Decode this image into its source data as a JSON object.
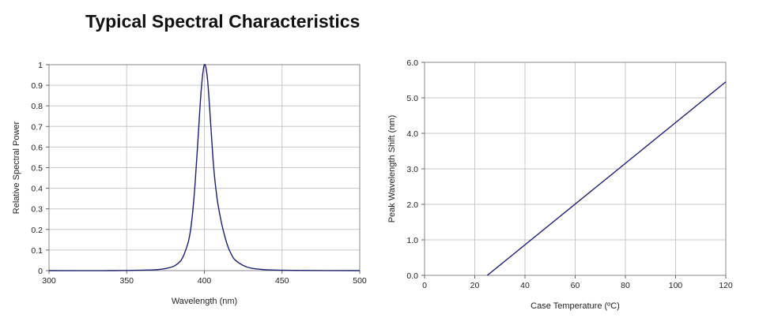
{
  "page": {
    "title": "Typical Spectral Characteristics"
  },
  "chart_data": [
    {
      "type": "line",
      "xlabel": "Wavelength (nm)",
      "ylabel": "Relative Spectral Power",
      "xlim": [
        300,
        500
      ],
      "ylim": [
        0,
        1
      ],
      "xticks": [
        300,
        350,
        400,
        450,
        500
      ],
      "yticks": [
        0,
        0.1,
        0.2,
        0.3,
        0.4,
        0.5,
        0.6,
        0.7,
        0.8,
        0.9,
        1
      ],
      "ytick_labels": [
        "0",
        "0.1",
        "0.2",
        "0.3",
        "0.4",
        "0.5",
        "0.6",
        "0.7",
        "0.8",
        "0.9",
        "1"
      ],
      "grid": true,
      "color": "#1f1f6e",
      "series": [
        {
          "x": [
            300,
            340,
            360,
            370,
            375,
            380,
            383,
            385,
            387,
            390,
            392,
            394,
            396,
            398,
            400,
            402,
            404,
            406,
            408,
            410,
            412,
            415,
            418,
            420,
            425,
            430,
            440,
            460,
            500
          ],
          "y": [
            0,
            0,
            0.002,
            0.005,
            0.01,
            0.02,
            0.035,
            0.05,
            0.08,
            0.15,
            0.25,
            0.42,
            0.65,
            0.88,
            1.0,
            0.93,
            0.72,
            0.5,
            0.36,
            0.27,
            0.2,
            0.12,
            0.07,
            0.05,
            0.025,
            0.012,
            0.004,
            0.001,
            0
          ]
        }
      ]
    },
    {
      "type": "line",
      "xlabel": "Case Temperature (ºC)",
      "ylabel": "Peak Wavelength Shift (nm)",
      "xlim": [
        0,
        120
      ],
      "ylim": [
        0,
        6
      ],
      "xticks": [
        0,
        20,
        40,
        60,
        80,
        100,
        120
      ],
      "yticks": [
        0,
        1,
        2,
        3,
        4,
        5,
        6
      ],
      "ytick_labels": [
        "0.0",
        "1.0",
        "2.0",
        "3.0",
        "4.0",
        "5.0",
        "6.0"
      ],
      "grid": true,
      "color": "#1f1f6e",
      "series": [
        {
          "x": [
            25,
            120
          ],
          "y": [
            0,
            5.45
          ]
        }
      ]
    }
  ]
}
